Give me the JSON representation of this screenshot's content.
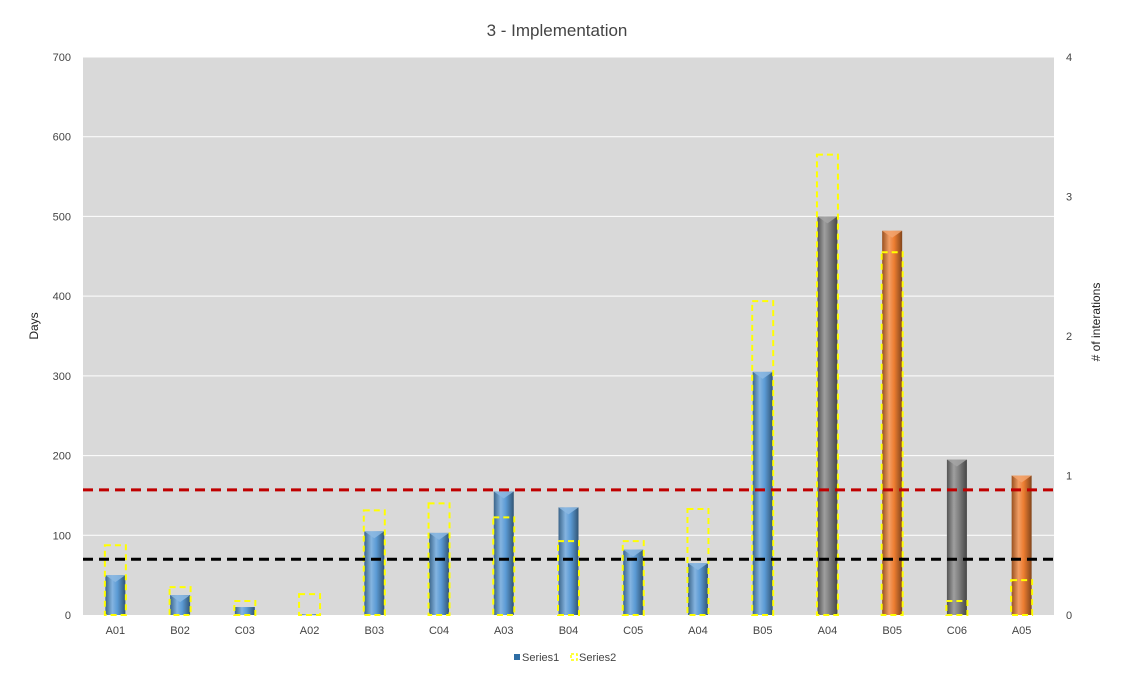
{
  "chart_data": {
    "type": "bar",
    "title": "3 - Implementation",
    "ylabel": "Days",
    "y2label": "# of interations",
    "ylim": [
      0,
      700
    ],
    "y2lim": [
      0,
      4
    ],
    "yticks": [
      "0",
      "100",
      "200",
      "300",
      "400",
      "500",
      "600",
      "700"
    ],
    "y2ticks": [
      "0",
      "1",
      "2",
      "3",
      "4"
    ],
    "categories": [
      "A01",
      "B02",
      "C03",
      "A02",
      "B03",
      "C04",
      "A03",
      "B04",
      "C05",
      "A04",
      "B05",
      "A04",
      "B05",
      "C06",
      "A05"
    ],
    "series": [
      {
        "name": "Series1",
        "axis": "left",
        "values": [
          50,
          25,
          10,
          1,
          105,
          103,
          155,
          135,
          82,
          65,
          305,
          500,
          482,
          195,
          175
        ],
        "bar_colors": [
          "#5b9bd5",
          "#5b9bd5",
          "#5b9bd5",
          "#5b9bd5",
          "#5b9bd5",
          "#5b9bd5",
          "#5b9bd5",
          "#5b9bd5",
          "#5b9bd5",
          "#5b9bd5",
          "#5b9bd5",
          "#7f7f7f",
          "#ed7d31",
          "#7f7f7f",
          "#ed7d31"
        ]
      },
      {
        "name": "Series2",
        "axis": "right",
        "style": "dashed-outline",
        "color": "#ffff00",
        "values": [
          0.5,
          0.2,
          0.1,
          0.15,
          0.75,
          0.8,
          0.7,
          0.53,
          0.53,
          0.76,
          2.25,
          3.3,
          2.6,
          0.1,
          0.25
        ]
      }
    ],
    "reference_lines": [
      {
        "axis": "left",
        "value": 157,
        "color": "#c00000",
        "style": "dashed"
      },
      {
        "axis": "left",
        "value": 70,
        "color": "#000000",
        "style": "dashed"
      }
    ],
    "grid": true,
    "plot_background": "#d9d9d9",
    "legend_position": "bottom"
  }
}
